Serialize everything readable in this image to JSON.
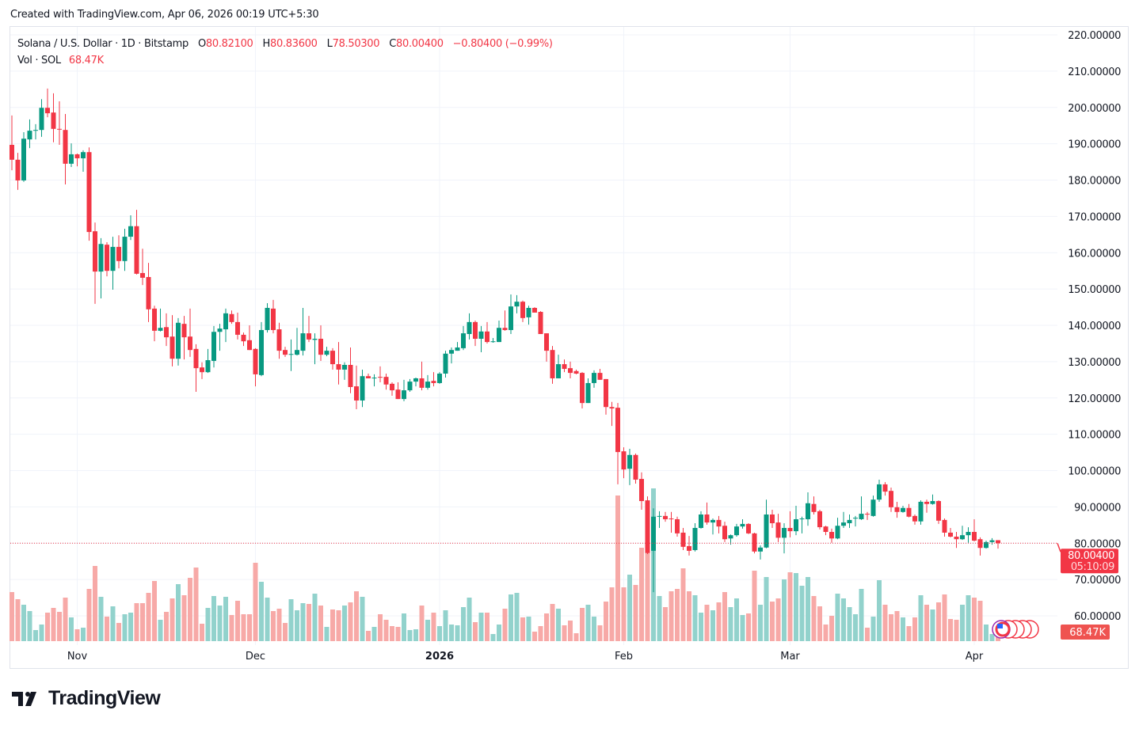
{
  "header": {
    "created_text": "Created with TradingView.com, Apr 06, 2026 00:19 UTC+5:30"
  },
  "legend": {
    "symbol": "Solana / U.S. Dollar · 1D · Bitstamp",
    "o_label": "O",
    "o_value": "80.82100",
    "h_label": "H",
    "h_value": "80.83600",
    "l_label": "L",
    "l_value": "78.50300",
    "c_label": "C",
    "c_value": "80.00400",
    "change": "−0.80400 (−0.99%)",
    "vol_label": "Vol · SOL",
    "vol_value": "68.47K"
  },
  "price_label": {
    "value": "80.00400",
    "countdown": "05:10:09"
  },
  "volume_label": {
    "value": "68.47K"
  },
  "footer": {
    "brand": "TradingView"
  },
  "colors": {
    "up": "#089981",
    "down": "#f23645",
    "vol_up": "#92d2cc",
    "vol_down": "#f7a9a7",
    "grid": "#f0f3fa"
  },
  "chart_data": {
    "type": "candlestick",
    "title": "Solana / U.S. Dollar · 1D · Bitstamp",
    "ylim": [
      60,
      220
    ],
    "y_ticks": [
      "220.00000",
      "210.00000",
      "200.00000",
      "190.00000",
      "180.00000",
      "170.00000",
      "160.00000",
      "150.00000",
      "140.00000",
      "130.00000",
      "120.00000",
      "110.00000",
      "100.00000",
      "90.00000",
      "80.00000",
      "70.00000",
      "60.00000"
    ],
    "x_ticks": [
      {
        "label": "Nov",
        "at_index": 11,
        "bold": false
      },
      {
        "label": "Dec",
        "at_index": 41,
        "bold": false
      },
      {
        "label": "2026",
        "at_index": 72,
        "bold": true
      },
      {
        "label": "Feb",
        "at_index": 103,
        "bold": false
      },
      {
        "label": "Mar",
        "at_index": 131,
        "bold": false
      },
      {
        "label": "Apr",
        "at_index": 162,
        "bold": false
      }
    ],
    "last_price": 80.004,
    "ohlc": [
      [
        189.7,
        197.8,
        182.7,
        185.6
      ],
      [
        185.6,
        187.5,
        177.3,
        179.9
      ],
      [
        179.9,
        193.2,
        179.5,
        191.4
      ],
      [
        191.2,
        196.7,
        188.8,
        193.6
      ],
      [
        193.6,
        195.4,
        191.2,
        193.8
      ],
      [
        193.8,
        202.3,
        191.9,
        199.9
      ],
      [
        199.9,
        205.2,
        197.3,
        198.4
      ],
      [
        198.6,
        203.9,
        190.4,
        194.1
      ],
      [
        194.1,
        201.7,
        189.7,
        194.0
      ],
      [
        193.8,
        198.2,
        178.8,
        184.5
      ],
      [
        184.5,
        190.1,
        183.6,
        187.1
      ],
      [
        187.1,
        187.3,
        183.8,
        186.0
      ],
      [
        186.0,
        188.2,
        182.3,
        187.7
      ],
      [
        187.7,
        189.0,
        163.3,
        165.7
      ],
      [
        165.9,
        168.3,
        145.9,
        154.8
      ],
      [
        154.8,
        164.0,
        147.4,
        162.4
      ],
      [
        162.2,
        162.9,
        153.5,
        155.0
      ],
      [
        155.0,
        164.4,
        149.8,
        161.6
      ],
      [
        161.6,
        164.8,
        155.7,
        157.7
      ],
      [
        157.7,
        166.6,
        155.0,
        164.4
      ],
      [
        164.4,
        170.3,
        163.5,
        167.3
      ],
      [
        167.3,
        171.8,
        154.0,
        154.2
      ],
      [
        154.4,
        161.1,
        151.1,
        153.1
      ],
      [
        153.3,
        157.2,
        140.9,
        144.4
      ],
      [
        144.6,
        145.4,
        135.6,
        138.5
      ],
      [
        138.5,
        144.6,
        138.3,
        139.3
      ],
      [
        139.5,
        143.3,
        134.3,
        136.7
      ],
      [
        136.9,
        142.8,
        128.7,
        130.8
      ],
      [
        130.8,
        142.0,
        128.9,
        140.7
      ],
      [
        140.4,
        142.6,
        130.6,
        136.7
      ],
      [
        136.9,
        144.6,
        131.3,
        133.2
      ],
      [
        133.5,
        134.8,
        121.7,
        128.2
      ],
      [
        128.4,
        129.8,
        125.2,
        127.1
      ],
      [
        127.1,
        133.5,
        126.9,
        130.4
      ],
      [
        130.2,
        139.8,
        128.4,
        138.2
      ],
      [
        138.2,
        140.4,
        133.0,
        139.1
      ],
      [
        138.9,
        144.6,
        135.4,
        143.3
      ],
      [
        143.1,
        144.1,
        140.4,
        140.9
      ],
      [
        140.9,
        143.5,
        136.1,
        137.4
      ],
      [
        137.4,
        138.0,
        134.3,
        135.6
      ],
      [
        135.9,
        140.0,
        133.2,
        133.2
      ],
      [
        133.5,
        133.7,
        123.2,
        126.5
      ],
      [
        126.3,
        140.9,
        126.0,
        138.7
      ],
      [
        138.7,
        146.1,
        138.0,
        144.8
      ],
      [
        144.6,
        147.0,
        137.8,
        138.7
      ],
      [
        138.9,
        140.7,
        130.8,
        133.0
      ],
      [
        133.2,
        134.1,
        131.3,
        131.9
      ],
      [
        132.0,
        136.1,
        127.4,
        132.1
      ],
      [
        131.9,
        139.3,
        131.7,
        133.2
      ],
      [
        133.0,
        144.8,
        131.7,
        137.8
      ],
      [
        137.8,
        142.6,
        135.4,
        136.1
      ],
      [
        136.0,
        137.8,
        129.3,
        136.3
      ],
      [
        136.3,
        140.0,
        130.2,
        131.9
      ],
      [
        131.9,
        134.1,
        131.5,
        133.0
      ],
      [
        133.0,
        133.7,
        127.8,
        129.3
      ],
      [
        129.3,
        135.4,
        123.7,
        127.8
      ],
      [
        127.8,
        129.8,
        125.0,
        129.1
      ],
      [
        129.1,
        133.9,
        121.3,
        123.0
      ],
      [
        123.2,
        128.9,
        116.9,
        119.3
      ],
      [
        119.3,
        127.8,
        117.5,
        126.0
      ],
      [
        126.0,
        126.7,
        125.4,
        125.4
      ],
      [
        125.4,
        126.5,
        123.2,
        125.6
      ],
      [
        125.8,
        128.7,
        124.3,
        125.6
      ],
      [
        125.8,
        126.7,
        122.3,
        123.7
      ],
      [
        123.9,
        124.3,
        120.6,
        122.1
      ],
      [
        122.3,
        124.3,
        119.7,
        119.7
      ],
      [
        119.7,
        125.0,
        119.1,
        122.1
      ],
      [
        122.1,
        125.2,
        121.7,
        124.5
      ],
      [
        124.5,
        125.6,
        123.2,
        125.4
      ],
      [
        125.4,
        130.0,
        122.1,
        122.8
      ],
      [
        122.8,
        126.3,
        122.3,
        124.5
      ],
      [
        124.7,
        127.1,
        123.2,
        124.1
      ],
      [
        124.1,
        127.1,
        123.9,
        126.7
      ],
      [
        126.7,
        133.0,
        125.6,
        132.2
      ],
      [
        132.2,
        133.9,
        129.5,
        133.2
      ],
      [
        133.0,
        135.4,
        133.0,
        133.9
      ],
      [
        133.7,
        139.8,
        133.2,
        137.8
      ],
      [
        137.6,
        143.3,
        136.1,
        140.9
      ],
      [
        140.9,
        141.3,
        134.3,
        136.3
      ],
      [
        136.3,
        139.8,
        132.6,
        138.3
      ],
      [
        138.3,
        140.9,
        135.0,
        135.4
      ],
      [
        135.5,
        136.5,
        135.2,
        135.6
      ],
      [
        135.4,
        141.3,
        135.4,
        139.3
      ],
      [
        139.3,
        144.1,
        138.5,
        138.7
      ],
      [
        138.7,
        148.5,
        137.6,
        145.2
      ],
      [
        145.2,
        148.3,
        143.3,
        146.5
      ],
      [
        146.5,
        146.8,
        140.9,
        142.0
      ],
      [
        142.2,
        145.4,
        140.2,
        144.8
      ],
      [
        144.8,
        145.0,
        143.5,
        143.5
      ],
      [
        143.7,
        143.9,
        137.6,
        137.6
      ],
      [
        137.8,
        137.8,
        130.0,
        133.0
      ],
      [
        133.2,
        134.3,
        123.9,
        125.4
      ],
      [
        125.4,
        131.9,
        125.4,
        129.3
      ],
      [
        129.3,
        130.6,
        127.1,
        128.0
      ],
      [
        128.2,
        130.0,
        125.4,
        126.9
      ],
      [
        127.4,
        127.8,
        126.5,
        126.7
      ],
      [
        126.9,
        127.1,
        117.1,
        118.6
      ],
      [
        118.6,
        125.4,
        118.6,
        124.1
      ],
      [
        124.1,
        127.6,
        122.8,
        126.9
      ],
      [
        126.9,
        128.0,
        125.0,
        125.0
      ],
      [
        125.2,
        125.2,
        115.4,
        117.5
      ],
      [
        117.5,
        118.9,
        112.3,
        117.1
      ],
      [
        117.3,
        118.6,
        96.2,
        105.1
      ],
      [
        105.3,
        106.4,
        97.9,
        100.3
      ],
      [
        100.5,
        106.0,
        96.0,
        104.3
      ],
      [
        104.3,
        104.7,
        96.4,
        97.5
      ],
      [
        97.7,
        99.5,
        89.2,
        91.6
      ],
      [
        91.8,
        92.9,
        77.0,
        77.3
      ],
      [
        77.9,
        89.6,
        66.5,
        87.3
      ],
      [
        87.3,
        88.8,
        84.2,
        87.5
      ],
      [
        87.5,
        88.6,
        85.9,
        86.6
      ],
      [
        86.8,
        88.6,
        82.9,
        86.7
      ],
      [
        86.6,
        87.3,
        81.8,
        82.7
      ],
      [
        82.9,
        84.2,
        78.1,
        79.0
      ],
      [
        79.2,
        82.0,
        76.6,
        77.9
      ],
      [
        78.1,
        85.5,
        77.7,
        84.2
      ],
      [
        84.2,
        88.8,
        84.0,
        87.9
      ],
      [
        87.9,
        91.2,
        85.1,
        85.7
      ],
      [
        85.7,
        86.8,
        82.4,
        86.4
      ],
      [
        86.4,
        87.5,
        82.7,
        84.6
      ],
      [
        84.8,
        85.9,
        80.3,
        81.1
      ],
      [
        81.3,
        82.4,
        79.6,
        82.2
      ],
      [
        82.2,
        85.3,
        81.8,
        84.6
      ],
      [
        84.6,
        86.6,
        84.0,
        85.3
      ],
      [
        85.3,
        85.5,
        82.5,
        82.7
      ],
      [
        82.7,
        82.9,
        77.2,
        77.7
      ],
      [
        77.7,
        79.4,
        75.5,
        78.8
      ],
      [
        78.8,
        92.0,
        78.6,
        87.9
      ],
      [
        87.9,
        89.2,
        84.2,
        85.5
      ],
      [
        85.7,
        88.1,
        80.3,
        81.5
      ],
      [
        81.5,
        85.5,
        77.2,
        84.2
      ],
      [
        84.2,
        88.8,
        81.6,
        83.3
      ],
      [
        83.3,
        90.3,
        82.2,
        86.6
      ],
      [
        86.6,
        87.3,
        82.7,
        86.8
      ],
      [
        86.6,
        94.0,
        84.8,
        91.0
      ],
      [
        90.8,
        92.9,
        87.9,
        88.6
      ],
      [
        88.8,
        89.2,
        83.8,
        84.4
      ],
      [
        84.6,
        84.8,
        82.2,
        83.1
      ],
      [
        83.1,
        84.0,
        80.1,
        81.3
      ],
      [
        81.3,
        87.0,
        81.1,
        84.8
      ],
      [
        84.8,
        88.6,
        84.2,
        85.7
      ],
      [
        85.5,
        87.9,
        84.2,
        86.4
      ],
      [
        86.8,
        87.5,
        84.6,
        87.0
      ],
      [
        86.6,
        92.9,
        86.4,
        88.1
      ],
      [
        88.1,
        88.6,
        86.4,
        87.9
      ],
      [
        87.5,
        93.1,
        87.3,
        92.0
      ],
      [
        92.0,
        97.5,
        91.4,
        96.2
      ],
      [
        96.2,
        96.8,
        93.1,
        94.2
      ],
      [
        94.4,
        95.3,
        88.6,
        89.9
      ],
      [
        89.9,
        91.4,
        87.0,
        88.6
      ],
      [
        88.6,
        90.3,
        88.4,
        89.7
      ],
      [
        89.7,
        90.8,
        87.1,
        87.3
      ],
      [
        87.5,
        87.9,
        85.1,
        86.0
      ],
      [
        86.0,
        91.8,
        85.1,
        91.4
      ],
      [
        91.4,
        92.0,
        88.4,
        90.8
      ],
      [
        90.8,
        93.4,
        90.6,
        91.6
      ],
      [
        91.6,
        91.8,
        85.3,
        86.2
      ],
      [
        86.4,
        86.8,
        81.8,
        82.9
      ],
      [
        82.9,
        84.2,
        81.6,
        81.8
      ],
      [
        81.8,
        83.1,
        78.7,
        81.1
      ],
      [
        81.1,
        84.8,
        80.9,
        82.2
      ],
      [
        82.2,
        84.4,
        80.1,
        83.1
      ],
      [
        83.1,
        86.6,
        80.5,
        80.7
      ],
      [
        81.1,
        81.6,
        76.6,
        78.7
      ],
      [
        78.7,
        80.7,
        78.5,
        80.3
      ],
      [
        80.3,
        81.4,
        79.6,
        80.8
      ],
      [
        80.821,
        80.836,
        78.503,
        80.004
      ]
    ],
    "volume_k": [
      310,
      265,
      230,
      190,
      70,
      105,
      180,
      210,
      185,
      275,
      150,
      75,
      85,
      330,
      475,
      280,
      155,
      220,
      115,
      170,
      180,
      240,
      240,
      305,
      380,
      135,
      185,
      270,
      360,
      290,
      400,
      465,
      110,
      210,
      285,
      225,
      280,
      165,
      255,
      170,
      170,
      495,
      375,
      275,
      190,
      205,
      115,
      265,
      195,
      240,
      235,
      300,
      225,
      90,
      200,
      195,
      225,
      245,
      315,
      280,
      65,
      90,
      170,
      135,
      95,
      90,
      175,
      70,
      75,
      225,
      135,
      180,
      95,
      195,
      105,
      100,
      215,
      275,
      120,
      180,
      180,
      45,
      105,
      205,
      295,
      305,
      150,
      155,
      60,
      95,
      175,
      235,
      205,
      100,
      130,
      50,
      210,
      230,
      155,
      100,
      250,
      340,
      920,
      340,
      420,
      355,
      590,
      640,
      965,
      285,
      215,
      315,
      330,
      460,
      315,
      290,
      180,
      230,
      195,
      245,
      310,
      215,
      270,
      165,
      175,
      445,
      230,
      405,
      250,
      270,
      390,
      435,
      430,
      350,
      405,
      285,
      220,
      105,
      160,
      300,
      270,
      215,
      170,
      330,
      85,
      155,
      385,
      230,
      170,
      190,
      150,
      95,
      150,
      290,
      230,
      200,
      245,
      295,
      140,
      135,
      230,
      290,
      275,
      255,
      105,
      45,
      68.47
    ]
  }
}
